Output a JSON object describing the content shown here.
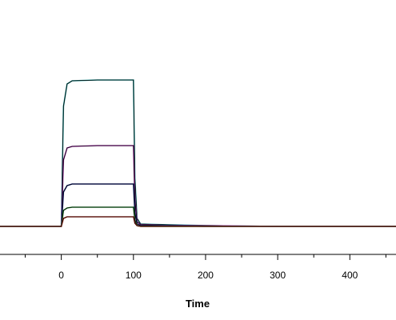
{
  "chart_data": {
    "type": "line",
    "x_label": "Time",
    "x": [
      -85,
      0,
      3,
      8,
      15,
      50,
      100,
      102,
      105,
      110,
      150,
      200,
      300,
      464
    ],
    "series": [
      {
        "color": "#1f9c9c",
        "values": [
          0,
          0,
          150,
          178,
          182,
          183,
          183,
          60,
          10,
          3,
          2,
          1,
          0,
          0
        ]
      },
      {
        "color": "#b23ab8",
        "values": [
          0,
          0,
          83,
          98,
          100,
          101,
          101,
          33,
          6,
          2,
          1,
          1,
          0,
          0
        ]
      },
      {
        "color": "#1c2a8c",
        "values": [
          0,
          0,
          43,
          51,
          53,
          53,
          53,
          17,
          3,
          1,
          1,
          0,
          0,
          0
        ]
      },
      {
        "color": "#2e9a3a",
        "values": [
          0,
          0,
          20,
          23,
          24,
          24,
          24,
          8,
          1,
          0,
          0,
          0,
          0,
          0
        ]
      },
      {
        "color": "#c0392b",
        "values": [
          0,
          0,
          10,
          12,
          12,
          12,
          12,
          4,
          1,
          0,
          0,
          0,
          0,
          0
        ]
      }
    ],
    "fit_color": "#000000",
    "xlim": [
      -85,
      464
    ],
    "ylim": [
      -35,
      283
    ],
    "xticks": [
      0,
      100,
      200,
      300,
      400
    ],
    "xminor": [
      -50,
      50,
      150,
      250,
      350,
      450
    ]
  }
}
